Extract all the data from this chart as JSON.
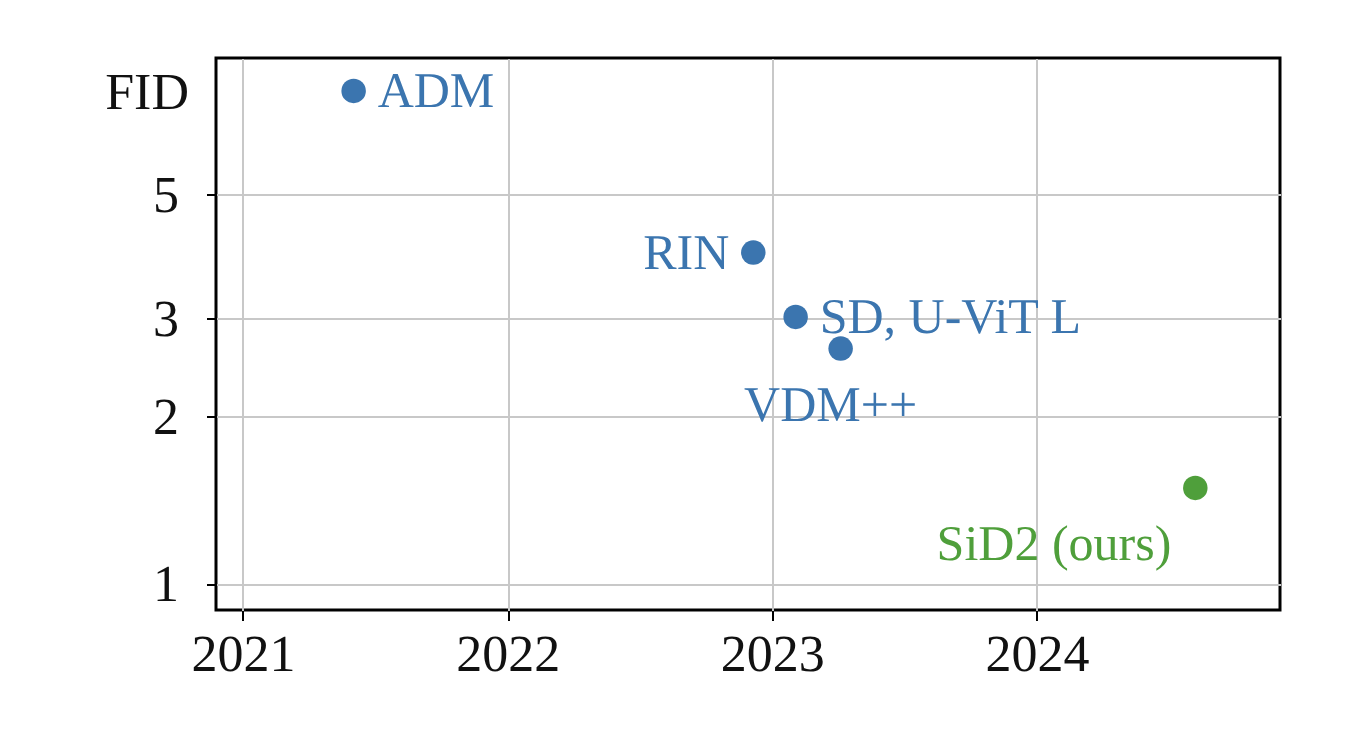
{
  "chart_data": {
    "type": "scatter",
    "ylabel": "FID",
    "log": "y",
    "grid": true,
    "marker": "circle",
    "xlim": [
      2020.9,
      2024.92
    ],
    "xticks": [
      2021,
      2022,
      2023,
      2024
    ],
    "ylim": [
      0.9,
      8.8
    ],
    "yticks": [
      1,
      2,
      3,
      5
    ],
    "series": [
      {
        "color": "#3b75af",
        "x": [
          2021.42,
          2022.93,
          2023.09,
          2023.26
        ],
        "values": [
          7.68,
          3.94,
          3.02,
          2.65
        ]
      },
      {
        "color": "#4f9f3b",
        "x": [
          2024.6
        ],
        "values": [
          1.49
        ]
      }
    ],
    "annotations": [
      {
        "text": "ADM",
        "x": 2021.42,
        "y": 7.68
      },
      {
        "text": "RIN",
        "x": 2022.93,
        "y": 3.94
      },
      {
        "text": "SD, U-ViT L",
        "x": 2023.09,
        "y": 3.02
      },
      {
        "text": "VDM++",
        "x": 2023.26,
        "y": 2.65
      },
      {
        "text": "SiD2 (ours)",
        "x": 2024.6,
        "y": 1.49
      }
    ]
  }
}
